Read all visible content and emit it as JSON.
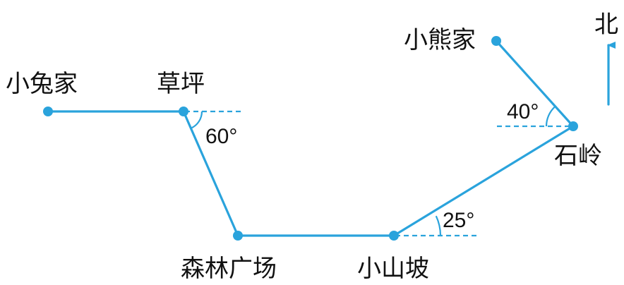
{
  "colors": {
    "route": "#2aa3dc",
    "text": "#111111",
    "background": "#ffffff"
  },
  "places": {
    "rabbit_home": "小兔家",
    "lawn": "草坪",
    "forest_square": "森林广场",
    "hill": "小山坡",
    "stone_ridge": "石岭",
    "bear_home": "小熊家"
  },
  "angles": {
    "lawn": "60°",
    "hill": "25°",
    "stone_ridge": "40°"
  },
  "compass": {
    "label": "北",
    "icon": "north-arrow-icon"
  }
}
